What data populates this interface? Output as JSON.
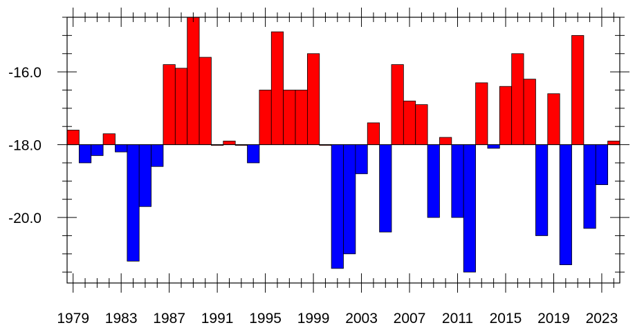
{
  "chart_data": {
    "type": "bar",
    "baseline": -18.0,
    "ylim": [
      -21.8,
      -14.5
    ],
    "xlim": [
      1978.5,
      2024.5
    ],
    "yticks": [
      -20.0,
      -18.0,
      -16.0
    ],
    "ytick_labels": [
      "-20.0",
      "-18.0",
      "-16.0"
    ],
    "xticks": [
      1979,
      1983,
      1987,
      1991,
      1995,
      1999,
      2003,
      2007,
      2011,
      2015,
      2019,
      2023
    ],
    "xtick_labels": [
      "1979",
      "1983",
      "1987",
      "1991",
      "1995",
      "1999",
      "2003",
      "2007",
      "2011",
      "2015",
      "2019",
      "2023"
    ],
    "colors": {
      "above": "#ff0000",
      "below": "#0000ff"
    },
    "years": [
      1979,
      1980,
      1981,
      1982,
      1983,
      1984,
      1985,
      1986,
      1987,
      1988,
      1989,
      1990,
      1991,
      1992,
      1993,
      1994,
      1995,
      1996,
      1997,
      1998,
      1999,
      2000,
      2001,
      2002,
      2003,
      2004,
      2005,
      2006,
      2007,
      2008,
      2009,
      2010,
      2011,
      2012,
      2013,
      2014,
      2015,
      2016,
      2017,
      2018,
      2019,
      2020,
      2021,
      2022,
      2023,
      2024
    ],
    "values": [
      -17.6,
      -18.5,
      -18.3,
      -17.7,
      -18.2,
      -21.2,
      -19.7,
      -18.6,
      -15.8,
      -15.9,
      -14.5,
      -15.6,
      -18.0,
      -17.9,
      -18.0,
      -18.5,
      -16.5,
      -14.9,
      -16.5,
      -16.5,
      -15.5,
      -18.0,
      -21.4,
      -21.0,
      -18.8,
      -17.4,
      -20.4,
      -15.8,
      -16.8,
      -16.9,
      -20.0,
      -17.8,
      -20.0,
      -21.5,
      -16.3,
      -18.1,
      -16.4,
      -15.5,
      -16.2,
      -20.5,
      -16.6,
      -21.3,
      -15.0,
      -20.3,
      -19.1,
      -17.9
    ]
  }
}
